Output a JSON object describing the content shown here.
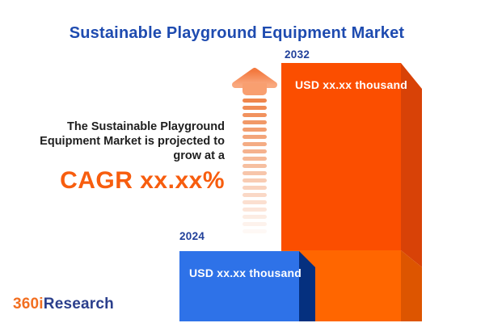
{
  "title": "Sustainable Playground Equipment Market",
  "projection": {
    "line1": "The Sustainable Playground",
    "line2": "Equipment Market is projected to",
    "line3": "grow at a",
    "cagr": "CAGR xx.xx%"
  },
  "bars": {
    "b2032": {
      "year": "2032",
      "value": "USD xx.xx thousand",
      "face_top_color": "#fb4e00",
      "face_bottom_color": "#ff6600",
      "side_top_color": "#d84207",
      "side_bottom_color": "#dd5500"
    },
    "b2024": {
      "year": "2024",
      "value": "USD xx.xx thousand",
      "face_color": "#2e72e8",
      "side_color": "#05307f"
    }
  },
  "arrow": {
    "head_color_top": "#f3793f",
    "head_color_bottom": "#f9a87e",
    "neck_color": "#f89f70",
    "trail_color": "#ee7f42"
  },
  "logo": {
    "part1": "360i",
    "part2": "Research",
    "color1": "#f26f21",
    "color2": "#2b3f8c"
  },
  "colors": {
    "title": "#1e4bb0",
    "year_label": "#21409a",
    "cagr": "#f75d0e",
    "body_text": "#1f1f1f"
  },
  "chart_data": {
    "type": "bar",
    "title": "Sustainable Playground Equipment Market",
    "categories": [
      "2024",
      "2032"
    ],
    "values": [
      "xx.xx",
      "xx.xx"
    ],
    "unit": "USD thousand",
    "value_labels": [
      "USD xx.xx thousand",
      "USD xx.xx thousand"
    ],
    "annotation": "The Sustainable Playground Equipment Market is projected to grow at a CAGR xx.xx%",
    "legend": "off",
    "grid": "off",
    "bar_colors": [
      "#2e72e8",
      "#fb4e00"
    ]
  }
}
